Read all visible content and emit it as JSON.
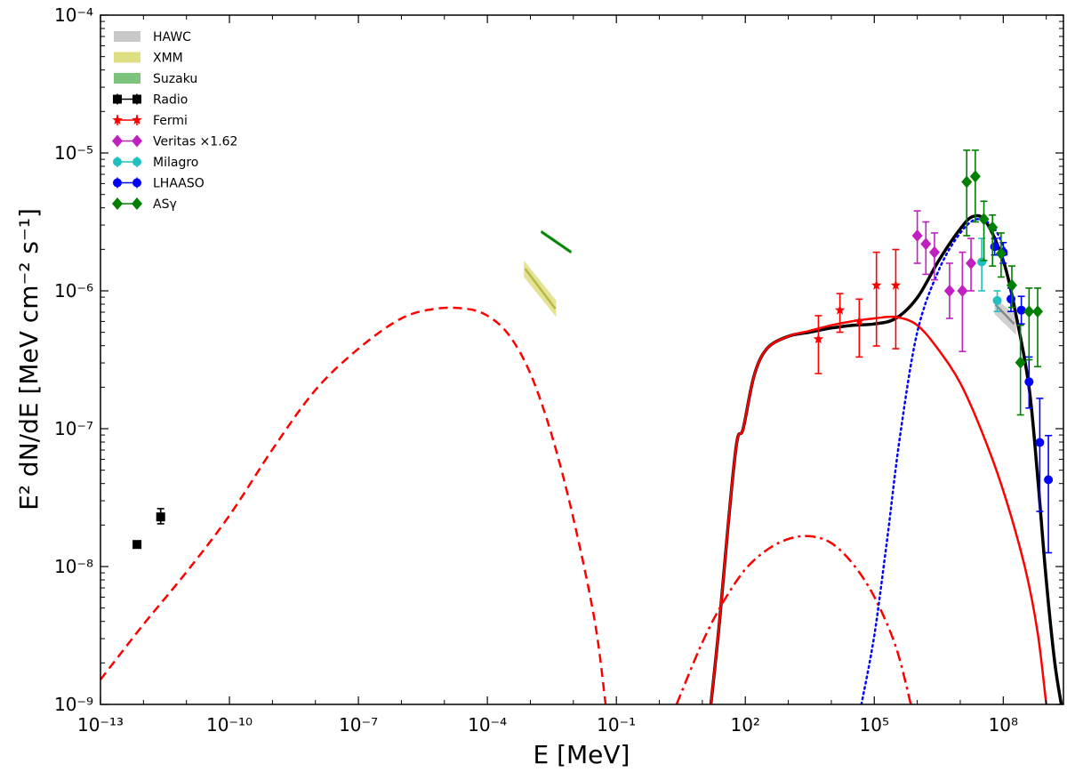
{
  "chart_data": {
    "type": "scatter",
    "title": "",
    "xlabel_base": "E [MeV]",
    "ylabel_main": "E² dN/dE [MeV cm⁻² s⁻¹]",
    "xscale": "log",
    "yscale": "log",
    "xlim_exp": [
      -13,
      9.4
    ],
    "ylim_exp": [
      -9,
      -4
    ],
    "x_ticks": [
      {
        "exp": -13,
        "label": "10⁻¹³"
      },
      {
        "exp": -10,
        "label": "10⁻¹⁰"
      },
      {
        "exp": -7,
        "label": "10⁻⁷"
      },
      {
        "exp": -4,
        "label": "10⁻⁴"
      },
      {
        "exp": -1,
        "label": "10⁻¹"
      },
      {
        "exp": 2,
        "label": "10²"
      },
      {
        "exp": 5,
        "label": "10⁵"
      },
      {
        "exp": 8,
        "label": "10⁸"
      }
    ],
    "y_ticks": [
      {
        "exp": -9,
        "label": "10⁻⁹"
      },
      {
        "exp": -8,
        "label": "10⁻⁸"
      },
      {
        "exp": -7,
        "label": "10⁻⁷"
      },
      {
        "exp": -6,
        "label": "10⁻⁶"
      },
      {
        "exp": -5,
        "label": "10⁻⁵"
      },
      {
        "exp": -4,
        "label": "10⁻⁴"
      }
    ],
    "legend_position": "top-left",
    "legend": [
      {
        "label": "HAWC",
        "kind": "band",
        "color": "#c8c8c8"
      },
      {
        "label": "XMM",
        "kind": "band",
        "color": "#dede82"
      },
      {
        "label": "Suzaku",
        "kind": "band",
        "color": "#7cc47c"
      },
      {
        "label": "Radio",
        "kind": "marker",
        "marker": "square",
        "color": "#000000"
      },
      {
        "label": "Fermi",
        "kind": "marker",
        "marker": "star",
        "color": "#ff0000"
      },
      {
        "label": "Veritas ×1.62",
        "kind": "marker",
        "marker": "diamond",
        "color": "#c020c0"
      },
      {
        "label": "Milagro",
        "kind": "marker",
        "marker": "circle",
        "color": "#20c0c0"
      },
      {
        "label": "LHAASO",
        "kind": "marker",
        "marker": "circle",
        "color": "#0000ff"
      },
      {
        "label": "ASγ",
        "kind": "marker",
        "marker": "diamond",
        "color": "#008000"
      }
    ],
    "curves": [
      {
        "name": "synchrotron",
        "style": "dashed",
        "color": "#ff0000",
        "points": [
          [
            -13,
            -8.82
          ],
          [
            -12,
            -8.42
          ],
          [
            -11,
            -8.04
          ],
          [
            -10,
            -7.63
          ],
          [
            -9,
            -7.15
          ],
          [
            -8,
            -6.72
          ],
          [
            -7,
            -6.42
          ],
          [
            -6,
            -6.2
          ],
          [
            -5.2,
            -6.13
          ],
          [
            -4.5,
            -6.13
          ],
          [
            -4,
            -6.18
          ],
          [
            -3.5,
            -6.32
          ],
          [
            -3,
            -6.6
          ],
          [
            -2.5,
            -7.05
          ],
          [
            -2,
            -7.65
          ],
          [
            -1.5,
            -8.4
          ],
          [
            -1.25,
            -9.0
          ]
        ]
      },
      {
        "name": "total",
        "style": "solid",
        "color": "#000000",
        "points": [
          [
            1.2,
            -9.0
          ],
          [
            1.4,
            -8.4
          ],
          [
            1.6,
            -7.7
          ],
          [
            1.8,
            -7.1
          ],
          [
            1.95,
            -7.0
          ],
          [
            2.2,
            -6.62
          ],
          [
            2.5,
            -6.42
          ],
          [
            3,
            -6.33
          ],
          [
            3.5,
            -6.3
          ],
          [
            4,
            -6.27
          ],
          [
            4.5,
            -6.25
          ],
          [
            5,
            -6.24
          ],
          [
            5.5,
            -6.2
          ],
          [
            6,
            -6.05
          ],
          [
            6.5,
            -5.78
          ],
          [
            7,
            -5.55
          ],
          [
            7.3,
            -5.46
          ],
          [
            7.6,
            -5.5
          ],
          [
            8,
            -5.78
          ],
          [
            8.3,
            -6.18
          ],
          [
            8.6,
            -6.7
          ],
          [
            8.8,
            -7.35
          ],
          [
            9,
            -8.1
          ],
          [
            9.2,
            -8.7
          ],
          [
            9.35,
            -9.0
          ]
        ]
      },
      {
        "name": "inverse-compton",
        "style": "solid",
        "color": "#ff0000",
        "points": [
          [
            1.2,
            -9.0
          ],
          [
            1.4,
            -8.4
          ],
          [
            1.6,
            -7.7
          ],
          [
            1.8,
            -7.1
          ],
          [
            1.95,
            -7.0
          ],
          [
            2.2,
            -6.62
          ],
          [
            2.5,
            -6.42
          ],
          [
            3,
            -6.33
          ],
          [
            3.5,
            -6.29
          ],
          [
            4,
            -6.25
          ],
          [
            4.5,
            -6.22
          ],
          [
            5,
            -6.2
          ],
          [
            5.5,
            -6.19
          ],
          [
            6,
            -6.25
          ],
          [
            6.5,
            -6.43
          ],
          [
            7,
            -6.67
          ],
          [
            7.5,
            -7.02
          ],
          [
            8,
            -7.45
          ],
          [
            8.5,
            -8.0
          ],
          [
            8.8,
            -8.48
          ],
          [
            9,
            -9.0
          ]
        ]
      },
      {
        "name": "bremsstrahlung",
        "style": "dashdot",
        "color": "#ff0000",
        "points": [
          [
            0.4,
            -9.0
          ],
          [
            1,
            -8.55
          ],
          [
            1.5,
            -8.25
          ],
          [
            2,
            -8.02
          ],
          [
            2.5,
            -7.88
          ],
          [
            3,
            -7.8
          ],
          [
            3.5,
            -7.78
          ],
          [
            4,
            -7.83
          ],
          [
            4.5,
            -7.98
          ],
          [
            5,
            -8.22
          ],
          [
            5.5,
            -8.58
          ],
          [
            5.85,
            -9.0
          ]
        ]
      },
      {
        "name": "hadronic",
        "style": "dotted",
        "color": "#0000ff",
        "points": [
          [
            4.7,
            -9.0
          ],
          [
            5,
            -8.5
          ],
          [
            5.3,
            -7.8
          ],
          [
            5.6,
            -7.05
          ],
          [
            6,
            -6.3
          ],
          [
            6.5,
            -5.85
          ],
          [
            7,
            -5.58
          ],
          [
            7.4,
            -5.48
          ],
          [
            7.8,
            -5.55
          ],
          [
            8.1,
            -5.75
          ]
        ]
      }
    ],
    "bands": [
      {
        "name": "HAWC",
        "fill": "#c8c8c8",
        "line": "#888888",
        "line_start": [
          7.82,
          -6.1
        ],
        "line_end": [
          8.25,
          -6.24
        ],
        "polygon": [
          [
            7.8,
            -6.05
          ],
          [
            8.3,
            -6.18
          ],
          [
            8.3,
            -6.32
          ],
          [
            7.8,
            -6.17
          ]
        ]
      },
      {
        "name": "XMM",
        "fill": "#dede82",
        "line": "#b8b848",
        "line_start": [
          -3.12,
          -5.84
        ],
        "line_end": [
          -2.42,
          -6.13
        ],
        "polygon": [
          [
            -3.15,
            -5.78
          ],
          [
            -2.4,
            -6.07
          ],
          [
            -2.4,
            -6.19
          ],
          [
            -3.15,
            -5.9
          ]
        ]
      },
      {
        "name": "Suzaku",
        "fill": "#7cc47c",
        "line": "#008000",
        "line_start": [
          -2.75,
          -5.57
        ],
        "line_end": [
          -2.05,
          -5.72
        ],
        "polygon": [
          [
            -2.75,
            -5.555
          ],
          [
            -2.05,
            -5.705
          ],
          [
            -2.05,
            -5.735
          ],
          [
            -2.75,
            -5.585
          ]
        ]
      }
    ],
    "series": [
      {
        "name": "Radio",
        "marker": "square",
        "color": "#000000",
        "points": [
          [
            -12.15,
            -7.84,
            -7.84,
            -7.84
          ],
          [
            -11.6,
            -7.64,
            -7.69,
            -7.58
          ]
        ]
      },
      {
        "name": "Fermi",
        "marker": "star",
        "color": "#ff0000",
        "points": [
          [
            3.7,
            -6.35,
            -6.6,
            -6.18
          ],
          [
            4.2,
            -6.14,
            -6.3,
            -6.02
          ],
          [
            4.65,
            -6.22,
            -6.48,
            -6.06
          ],
          [
            5.05,
            -5.96,
            -6.4,
            -5.72
          ],
          [
            5.5,
            -5.96,
            -6.42,
            -5.7
          ]
        ]
      },
      {
        "name": "Veritas ×1.62",
        "marker": "diamond",
        "color": "#c020c0",
        "points": [
          [
            6.0,
            -5.6,
            -5.8,
            -5.42
          ],
          [
            6.2,
            -5.66,
            -5.88,
            -5.5
          ],
          [
            6.4,
            -5.72,
            -5.92,
            -5.58
          ],
          [
            6.75,
            -6.0,
            -6.2,
            -5.8
          ],
          [
            7.05,
            -6.0,
            -6.44,
            -5.72
          ],
          [
            7.25,
            -5.8,
            -6.0,
            -5.62
          ]
        ]
      },
      {
        "name": "Milagro",
        "marker": "circle",
        "color": "#20c0c0",
        "points": [
          [
            7.5,
            -5.79,
            -6.0,
            -5.62
          ],
          [
            7.86,
            -6.07,
            -6.15,
            -6.0
          ]
        ]
      },
      {
        "name": "LHAASO",
        "marker": "circle",
        "color": "#0000ff",
        "points": [
          [
            7.8,
            -5.68,
            -5.74,
            -5.62
          ],
          [
            8.0,
            -5.72,
            -5.8,
            -5.65
          ],
          [
            8.18,
            -6.06,
            -6.15,
            -5.98
          ],
          [
            8.42,
            -6.14,
            -6.24,
            -6.04
          ],
          [
            8.6,
            -6.66,
            -6.85,
            -6.48
          ],
          [
            8.85,
            -7.1,
            -7.6,
            -6.78
          ],
          [
            9.05,
            -7.37,
            -7.9,
            -7.05
          ]
        ]
      },
      {
        "name": "ASγ",
        "marker": "diamond",
        "color": "#008000",
        "points": [
          [
            7.15,
            -5.21,
            -5.6,
            -4.98
          ],
          [
            7.35,
            -5.17,
            -5.5,
            -4.98
          ],
          [
            7.55,
            -5.48,
            -5.78,
            -5.35
          ],
          [
            7.75,
            -5.54,
            -5.82,
            -5.45
          ],
          [
            7.95,
            -5.73,
            -5.9,
            -5.58
          ],
          [
            8.2,
            -5.96,
            -6.12,
            -5.82
          ],
          [
            8.4,
            -6.52,
            -6.9,
            -6.25
          ],
          [
            8.6,
            -6.15,
            -6.5,
            -5.98
          ],
          [
            8.8,
            -6.15,
            -6.55,
            -5.98
          ]
        ]
      }
    ]
  }
}
